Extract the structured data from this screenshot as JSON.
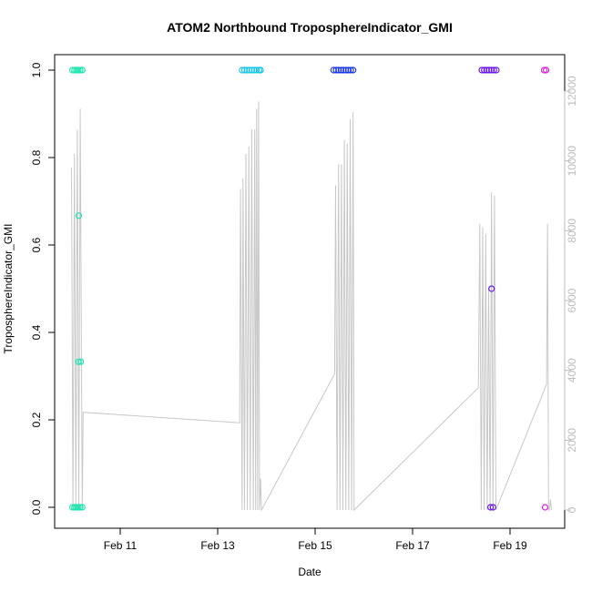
{
  "chart_data": {
    "type": "scatter",
    "title": "ATOM2 Northbound TroposphereIndicator_GMI",
    "xlabel": "Date",
    "ylabel": "TroposphereIndicator_GMI",
    "x_range_days": [
      10.1,
      20.0
    ],
    "x_ticks": [
      {
        "day": 11,
        "label": "Feb 11"
      },
      {
        "day": 13,
        "label": "Feb 13"
      },
      {
        "day": 15,
        "label": "Feb 15"
      },
      {
        "day": 17,
        "label": "Feb 17"
      },
      {
        "day": 19,
        "label": "Feb 19"
      }
    ],
    "ylim": [
      0,
      1
    ],
    "y_ticks": [
      0.0,
      0.2,
      0.4,
      0.6,
      0.8,
      1.0
    ],
    "y_tick_labels": [
      "0.0",
      "0.2",
      "0.4",
      "0.6",
      "0.8",
      "1.0"
    ],
    "y2lim": [
      0,
      12000
    ],
    "y2_ticks": [
      0,
      2000,
      4000,
      6000,
      8000,
      10000,
      12000
    ],
    "y2_tick_labels": [
      "0",
      "2000",
      "4000",
      "6000",
      "8000",
      "10000",
      "12000"
    ],
    "grid": false,
    "line_color": "#c8c8c8",
    "series": [
      {
        "color": "#1de5b0",
        "points": [
          [
            10.02,
            1
          ],
          [
            10.06,
            1
          ],
          [
            10.1,
            1
          ],
          [
            10.14,
            1
          ],
          [
            10.18,
            1
          ],
          [
            10.22,
            1
          ],
          [
            10.02,
            0
          ],
          [
            10.06,
            0
          ],
          [
            10.1,
            0
          ],
          [
            10.14,
            0
          ],
          [
            10.18,
            0
          ],
          [
            10.22,
            0
          ],
          [
            10.15,
            0.667
          ],
          [
            10.14,
            0.333
          ],
          [
            10.19,
            0.333
          ]
        ]
      },
      {
        "color": "#17c6f2",
        "points": [
          [
            13.5,
            1
          ],
          [
            13.55,
            1
          ],
          [
            13.6,
            1
          ],
          [
            13.65,
            1
          ],
          [
            13.7,
            1
          ],
          [
            13.75,
            1
          ],
          [
            13.8,
            1
          ],
          [
            13.85,
            1
          ],
          [
            13.88,
            1
          ]
        ]
      },
      {
        "color": "#1a37f0",
        "points": [
          [
            15.38,
            1
          ],
          [
            15.43,
            1
          ],
          [
            15.48,
            1
          ],
          [
            15.53,
            1
          ],
          [
            15.58,
            1
          ],
          [
            15.63,
            1
          ],
          [
            15.68,
            1
          ],
          [
            15.73,
            1
          ],
          [
            15.78,
            1
          ]
        ]
      },
      {
        "color": "#6a17ee",
        "points": [
          [
            18.42,
            1
          ],
          [
            18.47,
            1
          ],
          [
            18.52,
            1
          ],
          [
            18.57,
            1
          ],
          [
            18.62,
            1
          ],
          [
            18.67,
            1
          ],
          [
            18.72,
            1
          ],
          [
            18.62,
            0.5
          ],
          [
            18.6,
            0
          ],
          [
            18.65,
            0
          ]
        ]
      },
      {
        "color": "#dc1fe0",
        "points": [
          [
            19.7,
            1
          ],
          [
            19.74,
            1
          ],
          [
            19.72,
            0
          ]
        ]
      }
    ],
    "line_series": {
      "axis": "right",
      "points": [
        [
          10.0,
          9800
        ],
        [
          10.03,
          0
        ],
        [
          10.06,
          10200
        ],
        [
          10.09,
          0
        ],
        [
          10.12,
          10900
        ],
        [
          10.15,
          0
        ],
        [
          10.18,
          11500
        ],
        [
          10.22,
          0
        ],
        [
          10.24,
          2800
        ],
        [
          13.45,
          2500
        ],
        [
          13.47,
          9200
        ],
        [
          13.5,
          0
        ],
        [
          13.52,
          9500
        ],
        [
          13.55,
          0
        ],
        [
          13.58,
          10200
        ],
        [
          13.61,
          0
        ],
        [
          13.64,
          10400
        ],
        [
          13.67,
          0
        ],
        [
          13.7,
          10900
        ],
        [
          13.73,
          0
        ],
        [
          13.76,
          10900
        ],
        [
          13.78,
          0
        ],
        [
          13.8,
          11500
        ],
        [
          13.82,
          0
        ],
        [
          13.84,
          11700
        ],
        [
          13.86,
          0
        ],
        [
          13.88,
          900
        ],
        [
          13.9,
          0
        ],
        [
          15.4,
          3900
        ],
        [
          15.42,
          9300
        ],
        [
          15.45,
          0
        ],
        [
          15.48,
          9900
        ],
        [
          15.51,
          0
        ],
        [
          15.54,
          9900
        ],
        [
          15.57,
          0
        ],
        [
          15.6,
          10600
        ],
        [
          15.63,
          0
        ],
        [
          15.66,
          10500
        ],
        [
          15.69,
          0
        ],
        [
          15.72,
          11200
        ],
        [
          15.75,
          0
        ],
        [
          15.78,
          11400
        ],
        [
          15.8,
          0
        ],
        [
          18.35,
          3500
        ],
        [
          18.38,
          8200
        ],
        [
          18.41,
          0
        ],
        [
          18.44,
          8100
        ],
        [
          18.47,
          0
        ],
        [
          18.5,
          7900
        ],
        [
          18.53,
          0
        ],
        [
          18.56,
          6400
        ],
        [
          18.59,
          0
        ],
        [
          18.62,
          9100
        ],
        [
          18.65,
          0
        ],
        [
          18.68,
          9000
        ],
        [
          18.71,
          0
        ],
        [
          19.75,
          3600
        ],
        [
          19.77,
          8200
        ],
        [
          19.79,
          0
        ],
        [
          19.81,
          0
        ],
        [
          19.83,
          300
        ],
        [
          19.85,
          0
        ]
      ]
    }
  }
}
